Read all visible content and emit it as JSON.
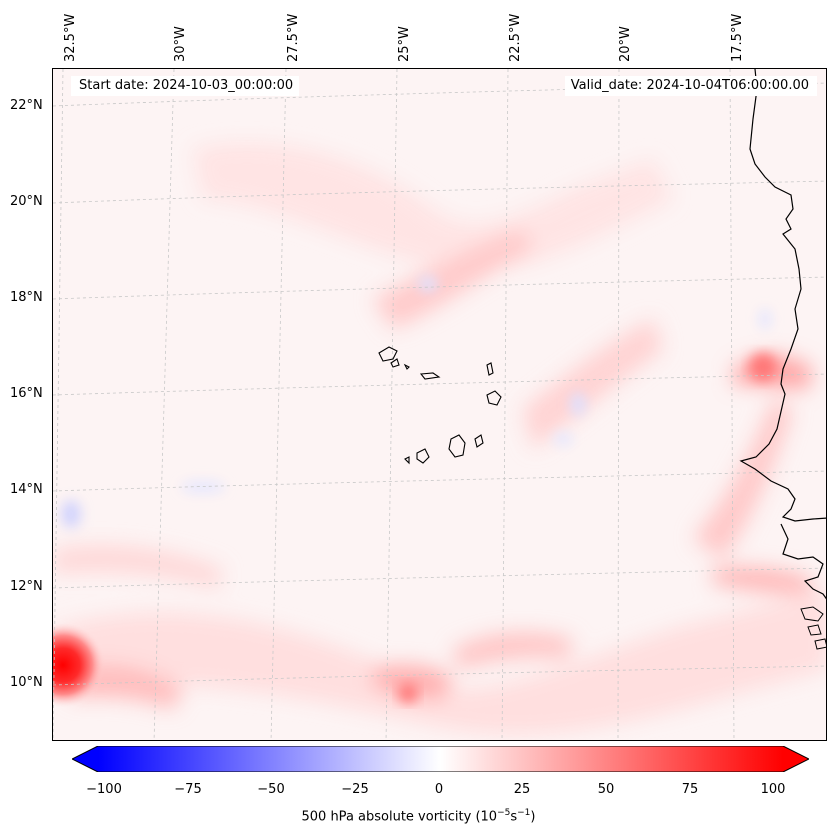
{
  "start_date": "Start date: 2024-10-03_00:00:00",
  "valid_date": "Valid_date: 2024-10-04T06:00:00.00",
  "lat_labels": [
    "22°N",
    "20°N",
    "18°N",
    "16°N",
    "14°N",
    "12°N",
    "10°N"
  ],
  "lon_labels": [
    "32.5°W",
    "30°W",
    "27.5°W",
    "25°W",
    "22.5°W",
    "20°W",
    "17.5°W"
  ],
  "colorbar": {
    "ticks": [
      "−100",
      "−75",
      "−50",
      "−25",
      "0",
      "25",
      "50",
      "75",
      "100"
    ],
    "label_prefix": "500 hPa absolute vorticity (10",
    "label_exp1": "−5",
    "label_mid": "s",
    "label_exp2": "−1",
    "label_suffix": ")",
    "min": -100,
    "max": 100,
    "colors": {
      "min": "#0000ff",
      "mid": "#ffffff",
      "max": "#ff0000"
    }
  },
  "colors": {
    "coast": "#000000",
    "grid": "#c8c8c8",
    "positive": "#ff0000",
    "negative": "#0000ff"
  }
}
